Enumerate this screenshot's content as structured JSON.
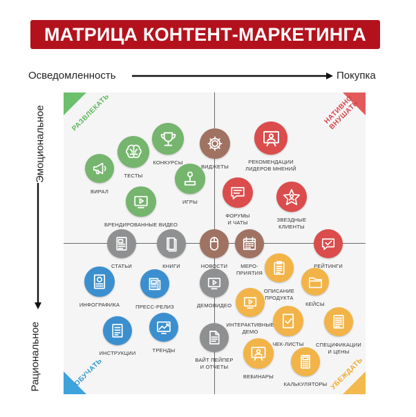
{
  "title": "МАТРИЦА КОНТЕНТ-МАРКЕТИНГА",
  "axes": {
    "left": "Осведомленность",
    "right": "Покупка",
    "top": "Эмоциональное",
    "bottom": "Рациональное"
  },
  "quadrants": {
    "top_left": "РАЗВЛЕКАТЬ",
    "top_right": [
      "НАТИВНО",
      "ВНУШАТЬ"
    ],
    "bottom_left": "ОБУЧАТЬ",
    "bottom_right": "УБЕЖДАТЬ"
  },
  "colors": {
    "banner": "#b3121d",
    "green": "#75b56d",
    "red": "#db4c4c",
    "blue": "#3b8fcf",
    "orange": "#f2b448",
    "brown": "#a07262",
    "gray": "#8f9091"
  },
  "nodes": [
    {
      "id": "viral",
      "label": [
        "ВИРАЛ"
      ],
      "color": "green",
      "icon": "megaphone-icon"
    },
    {
      "id": "tests",
      "label": [
        "ТЕСТЫ"
      ],
      "color": "green",
      "icon": "brain-icon"
    },
    {
      "id": "contests",
      "label": [
        "КОНКУРСЫ"
      ],
      "color": "green",
      "icon": "trophy-icon"
    },
    {
      "id": "games",
      "label": [
        "ИГРЫ"
      ],
      "color": "green",
      "icon": "joystick-icon"
    },
    {
      "id": "branded-video",
      "label": [
        "БРЕНДИРОВАННЫЕ ВИДЕО"
      ],
      "color": "green",
      "icon": "play-icon"
    },
    {
      "id": "widgets",
      "label": [
        "ВИДЖЕТЫ"
      ],
      "color": "brown",
      "icon": "gear-icon"
    },
    {
      "id": "forums",
      "label": [
        "ФОРУМЫ",
        "И ЧАТЫ"
      ],
      "color": "red",
      "icon": "chat-icon"
    },
    {
      "id": "influencers",
      "label": [
        "РЕКОМЕНДАЦИИ",
        "ЛИДЕРОВ МНЕНИЙ"
      ],
      "color": "red",
      "icon": "person-board-icon"
    },
    {
      "id": "celebrity",
      "label": [
        "ЗВЕЗДНЫЕ",
        "КЛИЕНТЫ"
      ],
      "color": "red",
      "icon": "star-icon"
    },
    {
      "id": "articles",
      "label": [
        "СТАТЬИ"
      ],
      "color": "gray",
      "icon": "article-icon"
    },
    {
      "id": "books",
      "label": [
        "КНИГИ"
      ],
      "color": "gray",
      "icon": "book-icon"
    },
    {
      "id": "news",
      "label": [
        "НОВОСТИ"
      ],
      "color": "brown",
      "icon": "mouse-icon"
    },
    {
      "id": "events",
      "label": [
        "МЕРО-",
        "ПРИЯТИЯ"
      ],
      "color": "brown",
      "icon": "calendar-icon"
    },
    {
      "id": "ratings",
      "label": [
        "РЕЙТИНГИ"
      ],
      "color": "red",
      "icon": "check-chat-icon"
    },
    {
      "id": "infographics",
      "label": [
        "ИНФОГРАФИКА"
      ],
      "color": "blue",
      "icon": "infographic-icon"
    },
    {
      "id": "press-release",
      "label": [
        "ПРЕСС-РЕЛИЗ"
      ],
      "color": "blue",
      "icon": "press-icon"
    },
    {
      "id": "demo-video",
      "label": [
        "ДЕМОВИДЕО"
      ],
      "color": "gray",
      "icon": "play-icon"
    },
    {
      "id": "product-desc",
      "label": [
        "ОПИСАНИЕ",
        "ПРОДУКТА"
      ],
      "color": "orange",
      "icon": "clipboard-icon"
    },
    {
      "id": "cases",
      "label": [
        "КЕЙСЫ"
      ],
      "color": "orange",
      "icon": "folder-icon"
    },
    {
      "id": "interactive-demo",
      "label": [
        "ИНТЕРАКТИВНЫЕ",
        "ДЕМО"
      ],
      "color": "orange",
      "icon": "play-icon"
    },
    {
      "id": "instructions",
      "label": [
        "ИНСТРУКЦИИ"
      ],
      "color": "blue",
      "icon": "list-icon"
    },
    {
      "id": "trends",
      "label": [
        "ТРЕНДЫ"
      ],
      "color": "blue",
      "icon": "trend-icon"
    },
    {
      "id": "whitepaper",
      "label": [
        "ВАЙТ ПЕЙПЕР",
        "И ОТЧЕТЫ"
      ],
      "color": "gray",
      "icon": "document-icon"
    },
    {
      "id": "checklists",
      "label": [
        "ЧЕК-ЛИСТЫ"
      ],
      "color": "orange",
      "icon": "checklist-icon"
    },
    {
      "id": "specs",
      "label": [
        "СПЕЦИФИКАЦИИ",
        "И ЦЕНЫ"
      ],
      "color": "orange",
      "icon": "spec-icon"
    },
    {
      "id": "webinars",
      "label": [
        "ВЕБИНАРЫ"
      ],
      "color": "orange",
      "icon": "person-board-icon"
    },
    {
      "id": "calculators",
      "label": [
        "КАЛЬКУЛЯТОРЫ"
      ],
      "color": "orange",
      "icon": "calculator-icon"
    }
  ]
}
